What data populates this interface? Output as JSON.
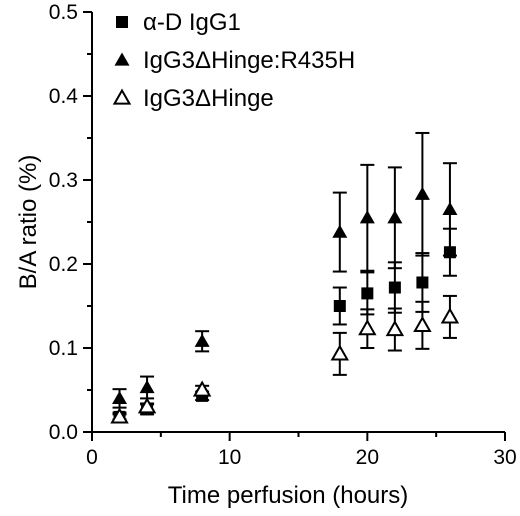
{
  "chart_data": {
    "type": "scatter",
    "xlabel": "Time perfusion (hours)",
    "ylabel": "B/A ratio (%)",
    "xlim": [
      0,
      30
    ],
    "ylim": [
      0,
      0.5
    ],
    "xticks": [
      "0",
      "10",
      "20",
      "30"
    ],
    "yticks": [
      "0.0",
      "0.1",
      "0.2",
      "0.3",
      "0.4",
      "0.5"
    ],
    "grid": false,
    "legend_position": "top-left",
    "series": [
      {
        "name": "α-D IgG1",
        "marker": "filled-square",
        "color": "#000000",
        "points": [
          {
            "x": 2,
            "y": 0.018,
            "err": 0.005
          },
          {
            "x": 4,
            "y": 0.027,
            "err": 0.006
          },
          {
            "x": 8,
            "y": 0.043,
            "err": 0.005
          },
          {
            "x": 18,
            "y": 0.15,
            "err": 0.022
          },
          {
            "x": 20,
            "y": 0.165,
            "err": 0.025
          },
          {
            "x": 22,
            "y": 0.172,
            "err": 0.03
          },
          {
            "x": 24,
            "y": 0.178,
            "err": 0.035
          },
          {
            "x": 26,
            "y": 0.214,
            "err": 0.028
          }
        ]
      },
      {
        "name": "IgG3ΔHinge:R435H",
        "marker": "filled-triangle",
        "color": "#000000",
        "points": [
          {
            "x": 2,
            "y": 0.04,
            "err": 0.011
          },
          {
            "x": 4,
            "y": 0.053,
            "err": 0.013
          },
          {
            "x": 8,
            "y": 0.108,
            "err": 0.012
          },
          {
            "x": 18,
            "y": 0.238,
            "err": 0.047
          },
          {
            "x": 20,
            "y": 0.255,
            "err": 0.063
          },
          {
            "x": 22,
            "y": 0.255,
            "err": 0.06
          },
          {
            "x": 24,
            "y": 0.283,
            "err": 0.073
          },
          {
            "x": 26,
            "y": 0.265,
            "err": 0.055
          }
        ]
      },
      {
        "name": "IgG3ΔHinge",
        "marker": "open-triangle",
        "color": "#000000",
        "points": [
          {
            "x": 2,
            "y": 0.018,
            "err": 0.003
          },
          {
            "x": 4,
            "y": 0.03,
            "err": 0.004
          },
          {
            "x": 8,
            "y": 0.05,
            "err": 0.005
          },
          {
            "x": 18,
            "y": 0.093,
            "err": 0.025
          },
          {
            "x": 20,
            "y": 0.123,
            "err": 0.023
          },
          {
            "x": 22,
            "y": 0.122,
            "err": 0.025
          },
          {
            "x": 24,
            "y": 0.127,
            "err": 0.028
          },
          {
            "x": 26,
            "y": 0.137,
            "err": 0.025
          }
        ]
      }
    ]
  }
}
